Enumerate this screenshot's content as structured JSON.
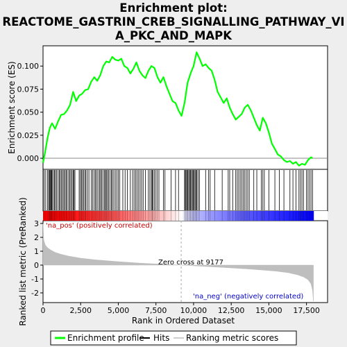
{
  "title_lines": [
    "Enrichment plot:",
    "REACTOME_GASTRIN_CREB_SIGNALLING_PATHWAY_VI",
    "A_PKC_AND_MAPK"
  ],
  "chart_data": {
    "type": "line",
    "es_panel": {
      "ylabel": "Enrichment score (ES)",
      "y_ticks": [
        "0.000",
        "0.025",
        "0.050",
        "0.075",
        "0.100"
      ],
      "y_tick_values": [
        0.0,
        0.025,
        0.05,
        0.075,
        0.1
      ],
      "ylim": [
        -0.012,
        0.122
      ],
      "series": [
        {
          "name": "Enrichment profile",
          "color": "#00ff00",
          "x": [
            0,
            150,
            300,
            450,
            600,
            800,
            1000,
            1200,
            1400,
            1600,
            1800,
            2000,
            2200,
            2400,
            2600,
            2800,
            3000,
            3200,
            3400,
            3600,
            3800,
            4000,
            4200,
            4400,
            4600,
            4800,
            5000,
            5200,
            5400,
            5600,
            5800,
            6000,
            6200,
            6400,
            6600,
            6800,
            7000,
            7200,
            7400,
            7600,
            7800,
            8000,
            8200,
            8400,
            8600,
            8800,
            9000,
            9200,
            9400,
            9600,
            9800,
            10000,
            10200,
            10400,
            10600,
            10800,
            11000,
            11200,
            11400,
            11600,
            11800,
            12000,
            12200,
            12400,
            12600,
            12800,
            13000,
            13200,
            13400,
            13600,
            13800,
            14000,
            14200,
            14400,
            14600,
            14800,
            15000,
            15200,
            15400,
            15600,
            15800,
            16000,
            16200,
            16400,
            16600,
            16800,
            17000,
            17200,
            17400,
            17600,
            17800,
            17900
          ],
          "y": [
            -0.005,
            0.008,
            0.022,
            0.033,
            0.038,
            0.032,
            0.04,
            0.047,
            0.048,
            0.052,
            0.058,
            0.072,
            0.062,
            0.068,
            0.07,
            0.074,
            0.075,
            0.083,
            0.088,
            0.084,
            0.09,
            0.1,
            0.105,
            0.104,
            0.11,
            0.107,
            0.106,
            0.108,
            0.1,
            0.098,
            0.092,
            0.097,
            0.104,
            0.095,
            0.09,
            0.087,
            0.095,
            0.1,
            0.098,
            0.088,
            0.082,
            0.088,
            0.078,
            0.07,
            0.062,
            0.06,
            0.052,
            0.046,
            0.06,
            0.082,
            0.092,
            0.1,
            0.115,
            0.108,
            0.1,
            0.102,
            0.098,
            0.095,
            0.085,
            0.072,
            0.066,
            0.06,
            0.065,
            0.055,
            0.048,
            0.042,
            0.045,
            0.048,
            0.055,
            0.058,
            0.052,
            0.044,
            0.036,
            0.03,
            0.044,
            0.038,
            0.028,
            0.016,
            0.01,
            0.004,
            0.002,
            -0.002,
            -0.004,
            -0.003,
            -0.006,
            -0.004,
            -0.008,
            -0.006,
            -0.007,
            -0.002,
            0.001,
            0.0
          ]
        }
      ]
    },
    "hits": {
      "name": "Hits",
      "x": [
        80,
        180,
        300,
        380,
        420,
        470,
        520,
        560,
        600,
        680,
        760,
        820,
        900,
        1000,
        1080,
        1150,
        1230,
        1300,
        1380,
        1450,
        1530,
        1600,
        1700,
        1780,
        1850,
        1930,
        2000,
        2060,
        2120,
        2400,
        2480,
        2550,
        2620,
        2700,
        2780,
        2850,
        2950,
        3050,
        3200,
        3300,
        3400,
        3480,
        3560,
        3650,
        3750,
        3820,
        3900,
        3980,
        4080,
        4150,
        4200,
        4280,
        4350,
        4450,
        4550,
        4600,
        4700,
        4800,
        4900,
        5000,
        5100,
        5300,
        5450,
        5600,
        5800,
        5950,
        6050,
        6150,
        6250,
        6350,
        6450,
        6550,
        6650,
        6800,
        7000,
        7100,
        7200,
        7250,
        7300,
        7400,
        7500,
        7600,
        7700,
        8000,
        8100,
        8500,
        8800,
        9000,
        9400,
        9450,
        9500,
        9560,
        9620,
        9680,
        9740,
        9800,
        9860,
        9920,
        9980,
        10040,
        10100,
        10160,
        10220,
        10300,
        10400,
        10800,
        11000,
        11100,
        11400,
        11900,
        12300,
        12400,
        12600,
        12800,
        12900,
        13000,
        13100,
        13200,
        13300,
        13400,
        13500,
        13600,
        13700,
        14000,
        14200,
        14500,
        14600,
        14700,
        15000,
        15400,
        15700,
        16000,
        16400,
        16600,
        16800,
        17000,
        17100,
        17200,
        17300,
        17500,
        17600,
        17700,
        17800,
        17900
      ],
      "color": "#000000"
    },
    "rank_panel": {
      "ylabel": "Ranked list metric (PreRanked)",
      "xlabel": "Rank in Ordered Dataset",
      "y_ticks": [
        "3",
        "2",
        "1",
        "0",
        "-1",
        "-2"
      ],
      "y_tick_values": [
        3,
        2,
        1,
        0,
        -1,
        -2
      ],
      "ylim": [
        -2.7,
        3.2
      ],
      "x_ticks": [
        "0",
        "2,500",
        "5,000",
        "7,500",
        "10,000",
        "12,500",
        "15,000",
        "17,500"
      ],
      "x_tick_values": [
        0,
        2500,
        5000,
        7500,
        10000,
        12500,
        15000,
        17500
      ],
      "xlim": [
        0,
        18900
      ],
      "n_genes": 17960,
      "zero_cross": 9177,
      "zero_cross_label": "Zero cross at 9177",
      "pos_label": "'na_pos' (positively correlated)",
      "neg_label": "'na_neg' (negatively correlated)",
      "series": [
        {
          "name": "Ranking metric scores",
          "color": "#bebebe",
          "x": [
            0,
            50,
            150,
            300,
            500,
            800,
            1200,
            1700,
            2500,
            3500,
            5000,
            6500,
            8000,
            9177,
            10500,
            12000,
            13500,
            14500,
            15500,
            16300,
            16900,
            17300,
            17600,
            17800,
            17900,
            17960
          ],
          "y": [
            3.0,
            1.8,
            1.45,
            1.25,
            1.1,
            0.92,
            0.78,
            0.65,
            0.5,
            0.38,
            0.25,
            0.14,
            0.06,
            0.0,
            -0.08,
            -0.17,
            -0.27,
            -0.35,
            -0.44,
            -0.55,
            -0.7,
            -0.85,
            -1.05,
            -1.35,
            -1.8,
            -2.6
          ]
        }
      ]
    },
    "legend": [
      {
        "label": "Enrichment profile",
        "color": "#00ff00"
      },
      {
        "label": "Hits",
        "color": "#000000"
      },
      {
        "label": "Ranking metric scores",
        "color": "#bebebe"
      }
    ]
  }
}
